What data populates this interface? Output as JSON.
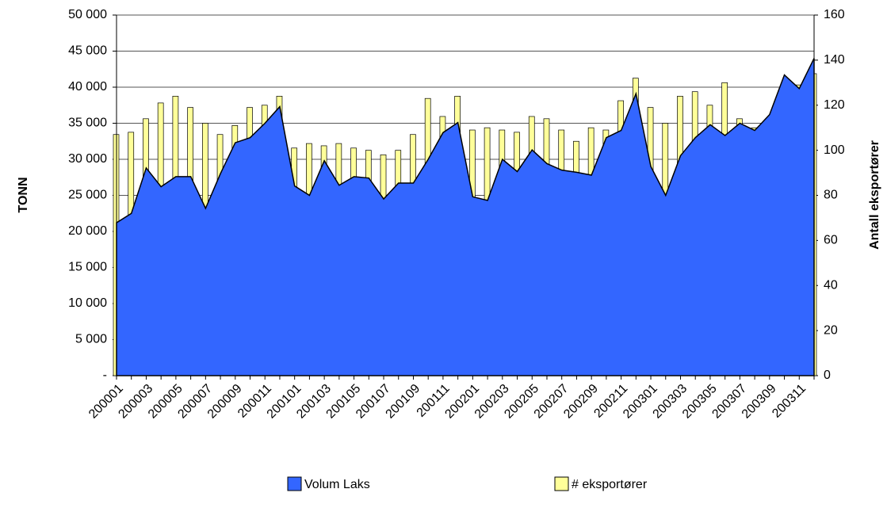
{
  "chart_data": {
    "type": "combo",
    "categories": [
      "200001",
      null,
      "200003",
      null,
      "200005",
      null,
      "200007",
      null,
      "200009",
      null,
      "200011",
      null,
      "200101",
      null,
      "200103",
      null,
      "200105",
      null,
      "200107",
      null,
      "200109",
      null,
      "200111",
      null,
      "200201",
      null,
      "200203",
      null,
      "200205",
      null,
      "200207",
      null,
      "200209",
      null,
      "200211",
      null,
      "200301",
      null,
      "200303",
      null,
      "200305",
      null,
      "200307",
      null,
      "200309",
      null,
      "200311",
      null
    ],
    "series": [
      {
        "name": "Volum Laks",
        "type": "area",
        "color": "#3366ff",
        "axis": "y",
        "values": [
          21200,
          22500,
          28800,
          26200,
          27600,
          27600,
          23200,
          28000,
          32300,
          33000,
          35000,
          37300,
          26300,
          25000,
          29800,
          26400,
          27600,
          27400,
          24500,
          26700,
          26700,
          30000,
          33700,
          35100,
          24800,
          24300,
          30000,
          28300,
          31300,
          29400,
          28500,
          28200,
          27800,
          33000,
          34000,
          39100,
          29000,
          25000,
          30500,
          33000,
          34800,
          33300,
          35000,
          34000,
          36200,
          41700,
          39800,
          44000
        ]
      },
      {
        "name": "# eksportører",
        "type": "bar",
        "color": "#ffff99",
        "axis": "y2",
        "values": [
          107,
          108,
          114,
          121,
          124,
          119,
          112,
          107,
          111,
          119,
          120,
          124,
          101,
          103,
          102,
          103,
          101,
          100,
          98,
          100,
          107,
          123,
          115,
          124,
          109,
          110,
          109,
          108,
          115,
          114,
          109,
          104,
          110,
          109,
          122,
          132,
          119,
          112,
          124,
          126,
          120,
          130,
          114,
          110,
          113,
          118,
          129,
          134
        ]
      }
    ],
    "ylabel": "TONN",
    "y2label": "Antall eksportører",
    "ylim": [
      0,
      50000
    ],
    "yticks": [
      {
        "value": 0,
        "label": "-"
      },
      {
        "value": 5000,
        "label": "5 000"
      },
      {
        "value": 10000,
        "label": "10 000"
      },
      {
        "value": 15000,
        "label": "15 000"
      },
      {
        "value": 20000,
        "label": "20 000"
      },
      {
        "value": 25000,
        "label": "25 000"
      },
      {
        "value": 30000,
        "label": "30 000"
      },
      {
        "value": 35000,
        "label": "35 000"
      },
      {
        "value": 40000,
        "label": "40 000"
      },
      {
        "value": 45000,
        "label": "45 000"
      },
      {
        "value": 50000,
        "label": "50 000"
      }
    ],
    "y2lim": [
      0,
      160
    ],
    "y2ticks": [
      0,
      20,
      40,
      60,
      80,
      100,
      120,
      140,
      160
    ],
    "grid": true,
    "legend": "bottom"
  }
}
